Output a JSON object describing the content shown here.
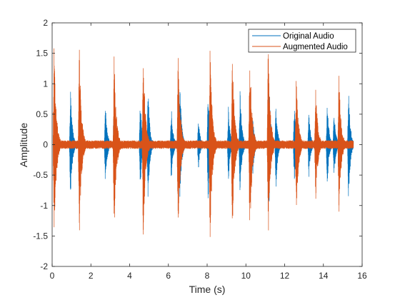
{
  "chart_data": {
    "type": "line",
    "title": "",
    "xlabel": "Time (s)",
    "ylabel": "Amplitude",
    "xlim": [
      0,
      16
    ],
    "ylim": [
      -2,
      2
    ],
    "xticks": [
      0,
      2,
      4,
      6,
      8,
      10,
      12,
      14,
      16
    ],
    "yticks": [
      -2,
      -1.5,
      -1,
      -0.5,
      0,
      0.5,
      1,
      1.5,
      2
    ],
    "xtick_labels": [
      "0",
      "2",
      "4",
      "6",
      "8",
      "10",
      "12",
      "14",
      "16"
    ],
    "ytick_labels": [
      "-2",
      "-1.5",
      "-1",
      "-0.5",
      "0",
      "0.5",
      "1",
      "1.5",
      "2"
    ],
    "grid": false,
    "legend": "top-right",
    "series": [
      {
        "name": "Original Audio",
        "color": "#0072BD",
        "bursts": [
          {
            "t": 0.95,
            "amp": 1.0
          },
          {
            "t": 2.75,
            "amp": 0.7
          },
          {
            "t": 3.2,
            "amp": 1.0
          },
          {
            "t": 4.55,
            "amp": 0.75
          },
          {
            "t": 4.95,
            "amp": 1.0
          },
          {
            "t": 6.15,
            "amp": 0.65
          },
          {
            "t": 6.6,
            "amp": 1.0
          },
          {
            "t": 7.55,
            "amp": 0.45
          },
          {
            "t": 8.05,
            "amp": 1.0
          },
          {
            "t": 9.1,
            "amp": 0.65
          },
          {
            "t": 9.7,
            "amp": 1.0
          },
          {
            "t": 10.35,
            "amp": 0.55
          },
          {
            "t": 11.2,
            "amp": 1.0
          },
          {
            "t": 11.55,
            "amp": 0.75
          },
          {
            "t": 12.5,
            "amp": 0.65
          },
          {
            "t": 13.25,
            "amp": 0.55
          },
          {
            "t": 14.2,
            "amp": 0.75
          },
          {
            "t": 14.55,
            "amp": 0.6
          },
          {
            "t": 15.3,
            "amp": 1.0
          }
        ]
      },
      {
        "name": "Augmented Audio",
        "color": "#D95319",
        "bursts": [
          {
            "t": 0.1,
            "amp": 1.65
          },
          {
            "t": 1.4,
            "amp": 1.65
          },
          {
            "t": 3.2,
            "amp": 1.55
          },
          {
            "t": 4.7,
            "amp": 1.65
          },
          {
            "t": 6.5,
            "amp": 1.55
          },
          {
            "t": 8.15,
            "amp": 1.65
          },
          {
            "t": 9.3,
            "amp": 1.55
          },
          {
            "t": 10.2,
            "amp": 1.65
          },
          {
            "t": 11.15,
            "amp": 1.65
          },
          {
            "t": 12.6,
            "amp": 1.2
          },
          {
            "t": 13.6,
            "amp": 1.0
          },
          {
            "t": 14.8,
            "amp": 1.2
          }
        ],
        "noise_floor": 0.07
      }
    ]
  }
}
